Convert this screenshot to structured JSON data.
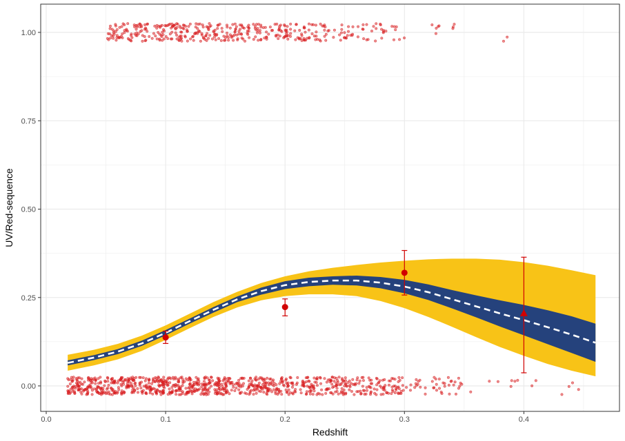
{
  "chart_data": {
    "type": "scatter",
    "xlabel": "Redshift",
    "ylabel": "UV/Red-sequence",
    "xlim": [
      -0.005,
      0.48
    ],
    "ylim": [
      -0.08,
      1.08
    ],
    "x_ticks": [
      0.0,
      0.1,
      0.2,
      0.3,
      0.4
    ],
    "x_tick_labels": [
      "0.0",
      "0.1",
      "0.2",
      "0.3",
      "0.4"
    ],
    "y_ticks": [
      0.0,
      0.25,
      0.5,
      0.75,
      1.0
    ],
    "y_tick_labels": [
      "0.00",
      "0.25",
      "0.50",
      "0.75",
      "1.00"
    ],
    "grid": true,
    "legend": "none",
    "colors": {
      "outer_band": "#f8c317",
      "inner_band": "#25427c",
      "fit_line": "#ffffff",
      "points": "#d7191c",
      "binned": "#d10000",
      "grid": "#ebebeb",
      "panel_border": "#333333"
    },
    "fit_curve": {
      "x": [
        0.018,
        0.04,
        0.06,
        0.08,
        0.1,
        0.12,
        0.14,
        0.16,
        0.18,
        0.2,
        0.22,
        0.24,
        0.26,
        0.28,
        0.3,
        0.32,
        0.34,
        0.36,
        0.38,
        0.4,
        0.42,
        0.44,
        0.46
      ],
      "y": [
        0.065,
        0.08,
        0.097,
        0.12,
        0.15,
        0.183,
        0.215,
        0.245,
        0.268,
        0.285,
        0.294,
        0.298,
        0.298,
        0.292,
        0.281,
        0.265,
        0.245,
        0.225,
        0.205,
        0.186,
        0.166,
        0.145,
        0.122
      ]
    },
    "inner_band": {
      "lower": [
        0.058,
        0.073,
        0.09,
        0.113,
        0.143,
        0.176,
        0.207,
        0.237,
        0.258,
        0.274,
        0.282,
        0.286,
        0.284,
        0.276,
        0.262,
        0.243,
        0.219,
        0.194,
        0.168,
        0.143,
        0.118,
        0.093,
        0.068
      ],
      "upper": [
        0.072,
        0.087,
        0.104,
        0.128,
        0.158,
        0.19,
        0.223,
        0.253,
        0.278,
        0.296,
        0.306,
        0.31,
        0.312,
        0.308,
        0.3,
        0.287,
        0.271,
        0.256,
        0.242,
        0.229,
        0.214,
        0.197,
        0.176
      ]
    },
    "outer_band": {
      "lower": [
        0.043,
        0.058,
        0.075,
        0.099,
        0.13,
        0.163,
        0.195,
        0.222,
        0.242,
        0.254,
        0.259,
        0.259,
        0.254,
        0.24,
        0.22,
        0.195,
        0.167,
        0.138,
        0.11,
        0.085,
        0.062,
        0.043,
        0.027
      ],
      "upper": [
        0.088,
        0.102,
        0.119,
        0.142,
        0.171,
        0.204,
        0.237,
        0.266,
        0.291,
        0.31,
        0.324,
        0.334,
        0.342,
        0.349,
        0.354,
        0.358,
        0.36,
        0.36,
        0.357,
        0.35,
        0.34,
        0.327,
        0.313
      ]
    },
    "binned_points": [
      {
        "x": 0.1,
        "y": 0.137,
        "ylow": 0.12,
        "yhigh": 0.155,
        "shape": "circle"
      },
      {
        "x": 0.2,
        "y": 0.223,
        "ylow": 0.198,
        "yhigh": 0.246,
        "shape": "circle"
      },
      {
        "x": 0.3,
        "y": 0.32,
        "ylow": 0.257,
        "yhigh": 0.383,
        "shape": "circle"
      },
      {
        "x": 0.4,
        "y": 0.205,
        "ylow": 0.037,
        "yhigh": 0.364,
        "shape": "triangle"
      }
    ],
    "scatter_density": {
      "n_lower": 950,
      "n_upper": 420,
      "jitter": 0.025,
      "lower_segments": [
        [
          0.018,
          0.05,
          0.25
        ],
        [
          0.05,
          0.1,
          0.45
        ],
        [
          0.1,
          0.15,
          0.45
        ],
        [
          0.15,
          0.2,
          0.3
        ],
        [
          0.2,
          0.25,
          0.25
        ],
        [
          0.25,
          0.3,
          0.22
        ],
        [
          0.3,
          0.35,
          0.08
        ],
        [
          0.35,
          0.4,
          0.02
        ],
        [
          0.4,
          0.46,
          0.01
        ]
      ],
      "upper_segments": [
        [
          0.05,
          0.1,
          0.45
        ],
        [
          0.1,
          0.15,
          0.5
        ],
        [
          0.15,
          0.2,
          0.4
        ],
        [
          0.2,
          0.25,
          0.3
        ],
        [
          0.25,
          0.3,
          0.18
        ],
        [
          0.3,
          0.35,
          0.05
        ],
        [
          0.38,
          0.41,
          0.01
        ]
      ]
    }
  }
}
